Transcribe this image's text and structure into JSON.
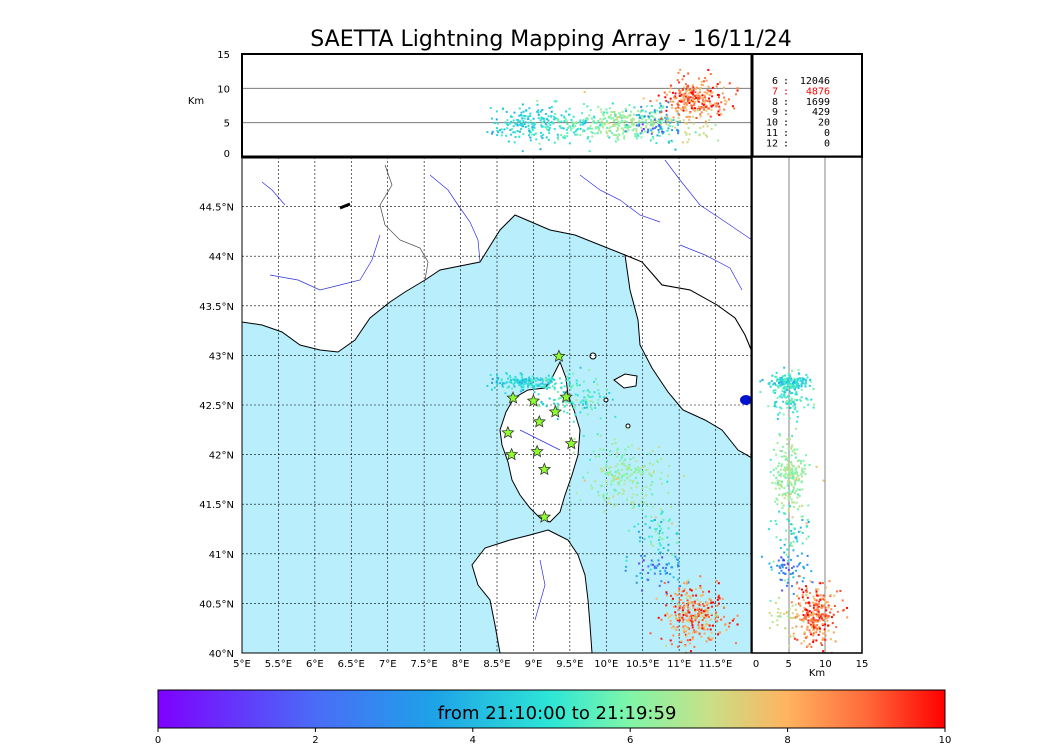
{
  "chart_data": {
    "type": "scatter",
    "title": "SAETTA Lightning Mapping Array - 16/11/24",
    "color_range_label": "from 21:10:00 to 21:19:59",
    "map": {
      "lon_ticks": [
        "5°E",
        "5.5°E",
        "6°E",
        "6.5°E",
        "7°E",
        "7.5°E",
        "8°E",
        "8.5°E",
        "9°E",
        "9.5°E",
        "10°E",
        "10.5°E",
        "11°E",
        "11.5°E"
      ],
      "lat_ticks": [
        "40°N",
        "40.5°N",
        "41°N",
        "41.5°N",
        "42°N",
        "42.5°N",
        "43°N",
        "43.5°N",
        "44°N",
        "44.5°N"
      ],
      "lon_range": [
        5,
        12
      ],
      "lat_range": [
        40,
        45
      ],
      "grid": true
    },
    "altitude_panel": {
      "ylabel": "Km",
      "yticks": [
        "0",
        "5",
        "10",
        "15"
      ],
      "ylim": [
        0,
        15
      ]
    },
    "side_panel": {
      "xlabel": "Km",
      "xticks": [
        "0",
        "5",
        "10",
        "15"
      ],
      "xlim": [
        0,
        15
      ]
    },
    "station_counts": [
      {
        "stations": "6",
        "count": "12046",
        "highlight": false
      },
      {
        "stations": "7",
        "count": "4876",
        "highlight": true
      },
      {
        "stations": "8",
        "count": "1699",
        "highlight": false
      },
      {
        "stations": "9",
        "count": "429",
        "highlight": false
      },
      {
        "stations": "10",
        "count": "20",
        "highlight": false
      },
      {
        "stations": "11",
        "count": "0",
        "highlight": false
      },
      {
        "stations": "12",
        "count": "0",
        "highlight": false
      }
    ],
    "colorbar": {
      "ticks": [
        "0",
        "2",
        "4",
        "6",
        "8",
        "10"
      ],
      "range": [
        0,
        10
      ]
    },
    "stations": [
      {
        "lon": 9.35,
        "lat": 42.99
      },
      {
        "lon": 8.72,
        "lat": 42.57
      },
      {
        "lon": 9.0,
        "lat": 42.54
      },
      {
        "lon": 9.45,
        "lat": 42.58
      },
      {
        "lon": 9.3,
        "lat": 42.43
      },
      {
        "lon": 9.08,
        "lat": 42.33
      },
      {
        "lon": 8.65,
        "lat": 42.22
      },
      {
        "lon": 9.52,
        "lat": 42.11
      },
      {
        "lon": 8.7,
        "lat": 42.0
      },
      {
        "lon": 9.05,
        "lat": 42.03
      },
      {
        "lon": 9.15,
        "lat": 41.85
      },
      {
        "lon": 9.15,
        "lat": 41.37
      }
    ],
    "clusters": [
      {
        "lon": 8.9,
        "lat": 42.74,
        "slon": 0.25,
        "slat": 0.04,
        "n": 160,
        "time": 4.6,
        "tspread": 0.5
      },
      {
        "lon": 9.5,
        "lat": 42.6,
        "slon": 0.25,
        "slat": 0.12,
        "n": 120,
        "time": 5.2,
        "tspread": 0.6
      },
      {
        "lon": 10.25,
        "lat": 41.8,
        "slon": 0.25,
        "slat": 0.16,
        "n": 200,
        "time": 6.3,
        "tspread": 0.5
      },
      {
        "lon": 10.7,
        "lat": 41.25,
        "slon": 0.15,
        "slat": 0.12,
        "n": 60,
        "time": 5.5,
        "tspread": 1.2
      },
      {
        "lon": 10.7,
        "lat": 40.85,
        "slon": 0.2,
        "slat": 0.1,
        "n": 60,
        "time": 3.0,
        "tspread": 1.0
      },
      {
        "lon": 11.2,
        "lat": 40.4,
        "slon": 0.22,
        "slat": 0.14,
        "n": 300,
        "time": 8.6,
        "tspread": 1.1
      }
    ]
  }
}
